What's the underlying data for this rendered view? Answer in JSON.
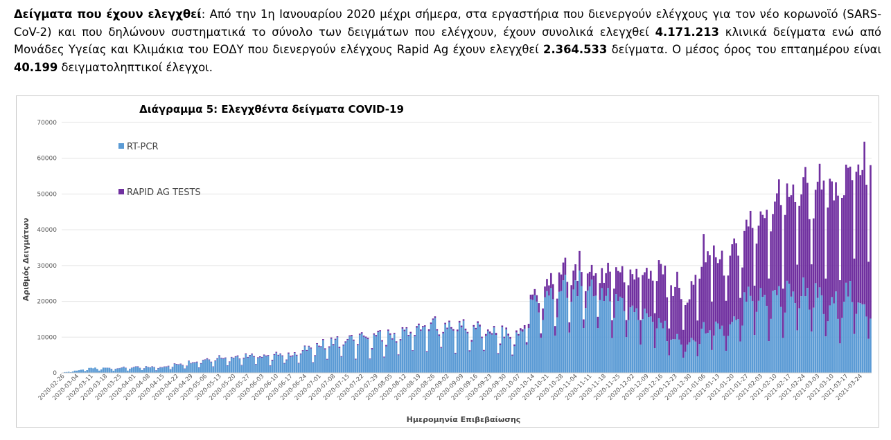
{
  "intro": {
    "lead": "Δείγματα που έχουν ελεγχθεί",
    "p1": ":  Από την 1η Ιανουαρίου 2020 μέχρι σήμερα, στα εργαστήρια που διενεργούν ελέγχους για τον νέο κορωνοϊό (SARS-CoV-2) και που δηλώνουν συστηματικά το σύνολο των δειγμάτων που ελέγχουν, έχουν συνολικά ελεγχθεί ",
    "pcr_total": "4.171.213",
    "p2": " κλινικά δείγματα ενώ από Μονάδες Υγείας και Κλιμάκια του ΕΟΔΥ που διενεργούν ελέγχους Rapid Ag έχουν ελεγχθεί ",
    "rapid_total": "2.364.533",
    "p3": " δείγματα. Ο μέσος όρος του επταημέρου είναι ",
    "avg7": "40.199",
    "p4": " δειγματοληπτικοί έλεγχοι."
  },
  "chart_data": {
    "type": "bar",
    "stacked": true,
    "title": "Διάγραμμα 5: Ελεγχθέντα δείγματα COVID-19",
    "xlabel": "Ημερομηνία Επιβεβαίωσης",
    "ylabel": "Αριθμός Δειγμάτων",
    "ylim": [
      0,
      70000
    ],
    "yticks": [
      0,
      10000,
      20000,
      30000,
      40000,
      50000,
      60000,
      70000
    ],
    "grid": "horizontal",
    "legend_position": "top-left",
    "x_start": "2020-02-26",
    "x_end": "2021-03-29",
    "xtick_labels": [
      "2020-02-26",
      "2020-03-04",
      "2020-03-11",
      "2020-03-18",
      "2020-03-25",
      "2020-04-01",
      "2020-04-08",
      "2020-04-15",
      "2020-04-22",
      "2020-04-29",
      "2020-05-06",
      "2020-05-13",
      "2020-05-20",
      "2020-05-27",
      "2020-06-03",
      "2020-06-10",
      "2020-06-17",
      "2020-06-24",
      "2020-07-01",
      "2020-07-08",
      "2020-07-15",
      "2020-07-22",
      "2020-07-29",
      "2020-08-05",
      "2020-08-12",
      "2020-08-19",
      "2020-08-26",
      "2020-09-02",
      "2020-09-09",
      "2020-09-16",
      "2020-09-23",
      "2020-09-30",
      "2020-10-07",
      "2020-10-14",
      "2020-10-21",
      "2020-10-28",
      "2020-11-04",
      "2020-11-11",
      "2020-11-18",
      "2020-11-25",
      "2020-12-02",
      "2020-12-09",
      "2020-12-16",
      "2020-12-23",
      "2020-12-30",
      "2021-01-06",
      "2021-01-13",
      "2021-01-20",
      "2021-01-27",
      "2021-02-03",
      "2021-02-10",
      "2021-02-17",
      "2021-02-24",
      "2021-03-03",
      "2021-03-10",
      "2021-03-17",
      "2021-03-24"
    ],
    "series": [
      {
        "name": "RT-PCR",
        "color": "#5b9bd5",
        "anchors": [
          {
            "date": "2020-02-26",
            "value": 100
          },
          {
            "date": "2020-03-11",
            "value": 1300
          },
          {
            "date": "2020-04-15",
            "value": 1700
          },
          {
            "date": "2020-05-13",
            "value": 4500
          },
          {
            "date": "2020-06-17",
            "value": 5200
          },
          {
            "date": "2020-07-08",
            "value": 9000
          },
          {
            "date": "2020-08-05",
            "value": 10500
          },
          {
            "date": "2020-08-26",
            "value": 14000
          },
          {
            "date": "2020-09-09",
            "value": 13500
          },
          {
            "date": "2020-09-30",
            "value": 11000
          },
          {
            "date": "2020-10-07",
            "value": 10500
          },
          {
            "date": "2020-10-14",
            "value": 20000
          },
          {
            "date": "2020-10-28",
            "value": 24000
          },
          {
            "date": "2020-11-11",
            "value": 25500
          },
          {
            "date": "2020-11-25",
            "value": 21500
          },
          {
            "date": "2020-12-09",
            "value": 17500
          },
          {
            "date": "2020-12-23",
            "value": 10000
          },
          {
            "date": "2020-12-30",
            "value": 8000
          },
          {
            "date": "2021-01-06",
            "value": 12500
          },
          {
            "date": "2021-01-20",
            "value": 13000
          },
          {
            "date": "2021-01-27",
            "value": 21000
          },
          {
            "date": "2021-02-10",
            "value": 22000
          },
          {
            "date": "2021-02-24",
            "value": 24500
          },
          {
            "date": "2021-03-10",
            "value": 19000
          },
          {
            "date": "2021-03-17",
            "value": 23000
          },
          {
            "date": "2021-03-29",
            "value": 20000
          }
        ]
      },
      {
        "name": "RAPID AG TESTS",
        "color": "#7030a0",
        "anchors": [
          {
            "date": "2020-02-26",
            "value": 0
          },
          {
            "date": "2020-10-07",
            "value": 500
          },
          {
            "date": "2020-10-14",
            "value": 1500
          },
          {
            "date": "2020-10-28",
            "value": 5000
          },
          {
            "date": "2020-11-11",
            "value": 4500
          },
          {
            "date": "2020-11-25",
            "value": 8000
          },
          {
            "date": "2020-12-09",
            "value": 13000
          },
          {
            "date": "2020-12-23",
            "value": 15000
          },
          {
            "date": "2020-12-30",
            "value": 12000
          },
          {
            "date": "2021-01-06",
            "value": 22000
          },
          {
            "date": "2021-01-20",
            "value": 20000
          },
          {
            "date": "2021-01-27",
            "value": 20000
          },
          {
            "date": "2021-02-10",
            "value": 26000
          },
          {
            "date": "2021-02-24",
            "value": 30000
          },
          {
            "date": "2021-03-10",
            "value": 33000
          },
          {
            "date": "2021-03-17",
            "value": 36000
          },
          {
            "date": "2021-03-29",
            "value": 40000
          }
        ]
      }
    ]
  }
}
